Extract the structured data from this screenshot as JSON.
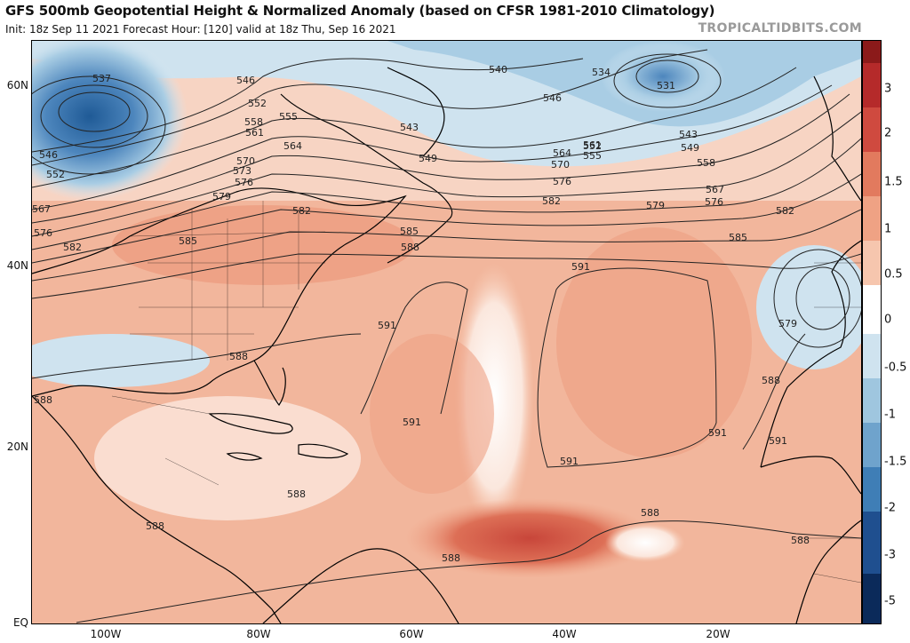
{
  "header": {
    "title": "GFS 500mb Geopotential Height & Normalized Anomaly (based on CFSR 1981-2010 Climatology)",
    "subtitle": "Init: 18z Sep 11 2021   Forecast Hour: [120]   valid at 18z Thu, Sep 16 2021",
    "brand": "TROPICALTIDBITS.COM"
  },
  "latitude_labels": [
    "60N",
    "40N",
    "20N",
    "EQ"
  ],
  "longitude_labels": [
    "100W",
    "80W",
    "60W",
    "40W",
    "20W"
  ],
  "colorbar": {
    "ticks": [
      "3",
      "2",
      "1.5",
      "1",
      "0.5",
      "0",
      "-0.5",
      "-1",
      "-1.5",
      "-2",
      "-3",
      "-5"
    ],
    "colors": [
      "#8b1a1a",
      "#b52a2a",
      "#cf4a3f",
      "#e27a5e",
      "#efa284",
      "#f6c6ae",
      "#ffffff",
      "#cfe3ef",
      "#9fc6df",
      "#6fa3cc",
      "#3f7eb6",
      "#1f4f8f",
      "#0b2a5a"
    ]
  },
  "contour_labels": [
    "537",
    "540",
    "534",
    "531",
    "546",
    "552",
    "555",
    "558",
    "561",
    "564",
    "543",
    "549",
    "570",
    "573",
    "576",
    "579",
    "582",
    "585",
    "588",
    "591",
    "567"
  ],
  "colors": {
    "anomaly_strong_pos": "#c8463a",
    "anomaly_pos": "#efa284",
    "anomaly_neutral": "#fbe7dd",
    "anomaly_neg": "#9fc6df",
    "anomaly_strong_neg": "#2f6ea8"
  }
}
